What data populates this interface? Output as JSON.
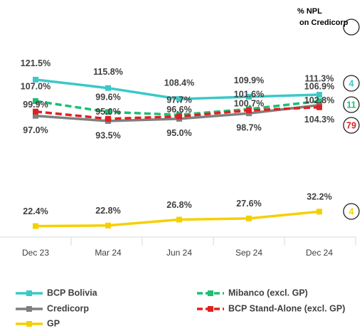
{
  "chart_data": {
    "type": "line",
    "categories": [
      "Dec 23",
      "Mar 24",
      "Jun 24",
      "Sep 24",
      "Dec 24"
    ],
    "ylim": [
      15,
      125
    ],
    "npl_header": "% NPL on Credicorp",
    "series": [
      {
        "name": "BCP Bolivia",
        "color": "#3cc8c8",
        "dashed": false,
        "values": [
          121.5,
          115.8,
          108.4,
          109.9,
          111.3
        ],
        "value_labels": [
          "121.5%",
          "115.8%",
          "108.4%",
          "109.9%",
          "111.3%"
        ],
        "npl": 4
      },
      {
        "name": "Mibanco (excl. GP)",
        "color": "#1dbf73",
        "dashed": true,
        "values": [
          107.0,
          99.6,
          97.7,
          101.6,
          106.9
        ],
        "value_labels": [
          "107.0%",
          "99.6%",
          "97.7%",
          "101.6%",
          "106.9%"
        ],
        "npl": 11
      },
      {
        "name": "Credicorp",
        "color": "#7f7f7f",
        "dashed": false,
        "values": [
          97.0,
          93.5,
          95.0,
          98.7,
          104.3
        ],
        "value_labels": [
          "97.0%",
          "93.5%",
          "95.0%",
          "98.7%",
          "104.3%"
        ]
      },
      {
        "name": "BCP Stand-Alone (excl. GP)",
        "color": "#e02020",
        "dashed": true,
        "values": [
          99.9,
          95.0,
          96.6,
          100.7,
          102.8
        ],
        "value_labels": [
          "99.9%",
          "95.0%",
          "96.6%",
          "100.7%",
          "102.8%"
        ],
        "npl": 79
      },
      {
        "name": "GP",
        "color": "#f5d000",
        "dashed": false,
        "values": [
          22.4,
          22.8,
          26.8,
          27.6,
          32.2
        ],
        "value_labels": [
          "22.4%",
          "22.8%",
          "26.8%",
          "27.6%",
          "32.2%"
        ],
        "npl": 4
      }
    ]
  }
}
